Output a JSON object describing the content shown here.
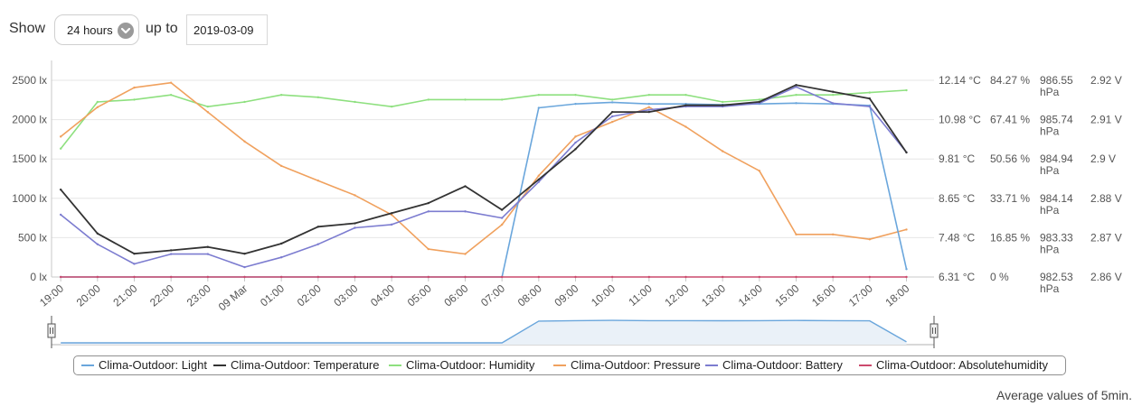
{
  "controls": {
    "show_label": "Show",
    "range_value": "24 hours",
    "upto_label": "up to",
    "date_value": "2019-03-09"
  },
  "footnote": "Average values of 5min.",
  "chart_data": {
    "type": "line",
    "x": [
      "19:00",
      "20:00",
      "21:00",
      "22:00",
      "23:00",
      "09 Mar",
      "01:00",
      "02:00",
      "03:00",
      "04:00",
      "05:00",
      "06:00",
      "07:00",
      "08:00",
      "09:00",
      "10:00",
      "11:00",
      "12:00",
      "13:00",
      "14:00",
      "15:00",
      "16:00",
      "17:00",
      "18:00"
    ],
    "axes": {
      "light": {
        "label": "lx",
        "ticks": [
          "0 lx",
          "500 lx",
          "1000 lx",
          "1500 lx",
          "2000 lx",
          "2500 lx"
        ],
        "range": [
          0,
          2500
        ]
      },
      "temperature": {
        "label": "°C",
        "ticks": [
          "6.31 °C",
          "7.48 °C",
          "8.65 °C",
          "9.81 °C",
          "10.98 °C",
          "12.14 °C"
        ],
        "range": [
          6.31,
          12.14
        ]
      },
      "humidity": {
        "label": "%",
        "ticks": [
          "0 %",
          "16.85 %",
          "33.71 %",
          "50.56 %",
          "67.41 %",
          "84.27 %"
        ],
        "range": [
          0,
          84.27
        ]
      },
      "pressure": {
        "label": "hPa",
        "ticks": [
          "982.53 hPa",
          "983.33 hPa",
          "984.14 hPa",
          "984.94 hPa",
          "985.74 hPa",
          "986.55 hPa"
        ],
        "range": [
          982.53,
          986.55
        ]
      },
      "battery": {
        "label": "V",
        "ticks": [
          "2.86 V",
          "2.87 V",
          "2.88 V",
          "2.9 V",
          "2.91 V",
          "2.92 V"
        ],
        "range": [
          2.86,
          2.92
        ]
      }
    },
    "grid": true,
    "legend_position": "bottom",
    "series": [
      {
        "name": "Clima-Outdoor: Light",
        "color": "#6aa6dc",
        "values": [
          0,
          0,
          0,
          0,
          0,
          0,
          0,
          0,
          0,
          0,
          0,
          0,
          0,
          2150,
          2200,
          2220,
          2200,
          2200,
          2190,
          2200,
          2210,
          2200,
          2180,
          100
        ]
      },
      {
        "name": "Clima-Outdoor: Temperature",
        "color": "#333333",
        "values": [
          8.9,
          7.6,
          7.0,
          7.1,
          7.2,
          7.0,
          7.3,
          7.8,
          7.9,
          8.2,
          8.5,
          9.0,
          8.3,
          9.2,
          10.1,
          11.2,
          11.2,
          11.4,
          11.4,
          11.5,
          12.0,
          11.8,
          11.6,
          10.0
        ]
      },
      {
        "name": "Clima-Outdoor: Humidity",
        "color": "#8ee07f",
        "values": [
          55,
          75,
          76,
          78,
          73,
          75,
          78,
          77,
          75,
          73,
          76,
          76,
          76,
          78,
          78,
          76,
          78,
          78,
          75,
          76,
          78,
          78,
          79,
          80
        ]
      },
      {
        "name": "Clima-Outdoor: Pressure",
        "color": "#f0a15e",
        "values": [
          985.4,
          986.0,
          986.4,
          986.5,
          985.9,
          985.3,
          984.8,
          984.5,
          984.2,
          983.8,
          983.1,
          983.0,
          983.6,
          984.6,
          985.4,
          985.7,
          986.0,
          985.6,
          985.1,
          984.7,
          983.4,
          983.4,
          983.3,
          983.5
        ]
      },
      {
        "name": "Clima-Outdoor: Battery",
        "color": "#7c7cd0",
        "values": [
          2.879,
          2.87,
          2.864,
          2.867,
          2.867,
          2.863,
          2.866,
          2.87,
          2.875,
          2.876,
          2.88,
          2.88,
          2.878,
          2.889,
          2.901,
          2.909,
          2.911,
          2.912,
          2.912,
          2.913,
          2.918,
          2.913,
          2.912,
          2.898
        ]
      },
      {
        "name": "Clima-Outdoor: Absolutehumidity",
        "color": "#cc4a6d",
        "values": [
          0,
          0,
          0,
          0,
          0,
          0,
          0,
          0,
          0,
          0,
          0,
          0,
          0,
          0,
          0,
          0,
          0,
          0,
          0,
          0,
          0,
          0,
          0,
          0
        ]
      }
    ],
    "navigator": {
      "series": "Clima-Outdoor: Light"
    }
  }
}
